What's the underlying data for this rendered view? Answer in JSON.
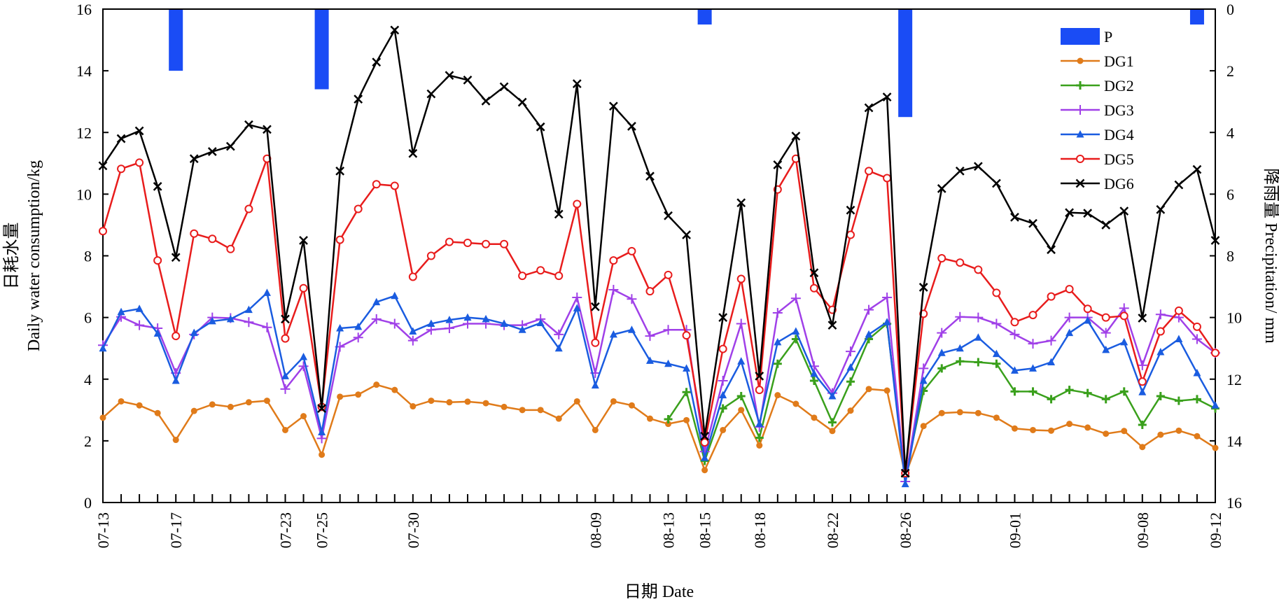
{
  "chart_data": {
    "type": "line",
    "title": "",
    "xlabel": "日期 Date",
    "ylabel_left": [
      "日耗水量",
      "Daily water consumption/kg"
    ],
    "ylabel_right": [
      "降雨量 Precipitation/ mm"
    ],
    "ylim_left": [
      0,
      16
    ],
    "ylim_right": [
      16,
      0
    ],
    "yticks_left": [
      "0",
      "2",
      "4",
      "6",
      "8",
      "10",
      "12",
      "14",
      "16"
    ],
    "yticks_right": [
      "16",
      "14",
      "12",
      "10",
      "8",
      "6",
      "4",
      "2",
      "0"
    ],
    "x_start": "07-13",
    "x_end": "09-12",
    "x_tick_labels": [
      {
        "label": "07-13",
        "day": 0
      },
      {
        "label": "07-17",
        "day": 4
      },
      {
        "label": "07-23",
        "day": 10
      },
      {
        "label": "07-25",
        "day": 12
      },
      {
        "label": "07-30",
        "day": 17
      },
      {
        "label": "08-09",
        "day": 27
      },
      {
        "label": "08-13",
        "day": 31
      },
      {
        "label": "08-15",
        "day": 33
      },
      {
        "label": "08-18",
        "day": 36
      },
      {
        "label": "08-22",
        "day": 40
      },
      {
        "label": "08-26",
        "day": 44
      },
      {
        "label": "09-01",
        "day": 50
      },
      {
        "label": "09-08",
        "day": 57
      },
      {
        "label": "09-12",
        "day": 61
      }
    ],
    "legend_position": "top-right",
    "precipitation": {
      "name": "P",
      "color": "#1a4cf5",
      "bars": [
        {
          "day": 4,
          "value": 2.0
        },
        {
          "day": 12,
          "value": 2.6
        },
        {
          "day": 33,
          "value": 0.5
        },
        {
          "day": 44,
          "value": 3.5
        },
        {
          "day": 60,
          "value": 0.5
        }
      ]
    },
    "series": [
      {
        "name": "DG1",
        "color": "#e07b1a",
        "marker": "dot",
        "values": [
          2.75,
          3.28,
          3.15,
          2.9,
          2.03,
          2.97,
          3.18,
          3.1,
          3.25,
          3.3,
          2.35,
          2.8,
          1.55,
          3.43,
          3.5,
          3.82,
          3.65,
          3.12,
          3.3,
          3.25,
          3.27,
          3.22,
          3.1,
          3.0,
          3.0,
          2.72,
          3.28,
          2.35,
          3.28,
          3.15,
          2.72,
          2.55,
          2.67,
          1.05,
          2.35,
          3.0,
          1.85,
          3.48,
          3.2,
          2.75,
          2.32,
          2.98,
          3.68,
          3.63,
          0.88,
          2.48,
          2.9,
          2.93,
          2.9,
          2.75,
          2.4,
          2.35,
          2.33,
          2.55,
          2.43,
          2.23,
          2.32,
          1.8,
          2.2,
          2.33,
          2.15,
          1.77
        ]
      },
      {
        "name": "DG2",
        "color": "#3aa01c",
        "marker": "plus",
        "start_day": 31,
        "values": [
          2.7,
          3.58,
          1.35,
          3.05,
          3.45,
          2.1,
          4.5,
          5.3,
          3.95,
          2.6,
          3.92,
          5.3,
          5.8,
          0.85,
          3.62,
          4.35,
          4.58,
          4.55,
          4.5,
          3.6,
          3.6,
          3.35,
          3.65,
          3.55,
          3.35,
          3.6,
          2.52,
          3.45,
          3.3,
          3.35,
          3.05
        ]
      },
      {
        "name": "DG3",
        "color": "#a040e8",
        "marker": "cross",
        "values": [
          5.1,
          6.02,
          5.75,
          5.65,
          4.2,
          5.45,
          6.0,
          5.98,
          5.85,
          5.68,
          3.68,
          4.42,
          2.08,
          5.05,
          5.35,
          5.95,
          5.8,
          5.25,
          5.6,
          5.65,
          5.8,
          5.8,
          5.75,
          5.75,
          5.95,
          5.45,
          6.65,
          4.2,
          6.9,
          6.6,
          5.4,
          5.6,
          5.6,
          1.65,
          3.95,
          5.8,
          2.45,
          6.15,
          6.62,
          4.42,
          3.55,
          4.9,
          6.25,
          6.65,
          0.68,
          4.35,
          5.5,
          6.02,
          6.0,
          5.8,
          5.45,
          5.15,
          5.25,
          6.0,
          6.0,
          5.5,
          6.3,
          4.45,
          6.1,
          6.0,
          5.3,
          4.85
        ]
      },
      {
        "name": "DG4",
        "color": "#1a5ce0",
        "marker": "triangle",
        "values": [
          5.0,
          6.18,
          6.28,
          5.48,
          3.95,
          5.5,
          5.88,
          5.95,
          6.25,
          6.8,
          4.1,
          4.72,
          2.28,
          5.65,
          5.7,
          6.5,
          6.7,
          5.55,
          5.8,
          5.92,
          6.0,
          5.95,
          5.8,
          5.6,
          5.82,
          5.0,
          6.3,
          3.8,
          5.45,
          5.6,
          4.6,
          4.5,
          4.35,
          1.45,
          3.48,
          4.58,
          2.55,
          5.2,
          5.55,
          4.18,
          3.45,
          4.38,
          5.45,
          5.85,
          0.6,
          3.95,
          4.85,
          5.0,
          5.35,
          4.82,
          4.28,
          4.35,
          4.55,
          5.5,
          5.9,
          4.95,
          5.2,
          3.58,
          4.88,
          5.3,
          4.2,
          3.15
        ]
      },
      {
        "name": "DG5",
        "color": "#e81c1c",
        "marker": "circle",
        "values": [
          8.8,
          10.82,
          11.02,
          7.85,
          5.4,
          8.72,
          8.55,
          8.22,
          9.52,
          11.15,
          5.32,
          6.95,
          3.1,
          8.52,
          9.52,
          10.32,
          10.27,
          7.32,
          8.0,
          8.45,
          8.42,
          8.38,
          8.38,
          7.35,
          7.53,
          7.35,
          9.68,
          5.18,
          7.85,
          8.15,
          6.85,
          7.38,
          5.42,
          1.95,
          4.98,
          7.25,
          3.65,
          10.15,
          11.15,
          6.95,
          6.25,
          8.68,
          10.75,
          10.52,
          0.95,
          6.12,
          7.92,
          7.78,
          7.55,
          6.8,
          5.85,
          6.08,
          6.68,
          6.92,
          6.28,
          6.0,
          6.05,
          3.92,
          5.55,
          6.22,
          5.7,
          4.85
        ]
      },
      {
        "name": "DG6",
        "color": "#000000",
        "marker": "x",
        "values": [
          10.92,
          11.8,
          12.05,
          10.25,
          7.95,
          11.15,
          11.38,
          11.55,
          12.25,
          12.1,
          5.95,
          8.5,
          3.05,
          10.75,
          13.08,
          14.28,
          15.32,
          11.32,
          13.25,
          13.85,
          13.7,
          13.02,
          13.48,
          12.98,
          12.18,
          9.35,
          13.58,
          6.35,
          12.85,
          12.2,
          10.58,
          9.3,
          8.68,
          2.15,
          6.0,
          9.72,
          4.1,
          10.95,
          11.88,
          7.45,
          5.75,
          9.48,
          12.8,
          13.15,
          0.95,
          6.98,
          10.18,
          10.75,
          10.9,
          10.35,
          9.25,
          9.05,
          8.2,
          9.4,
          9.38,
          9.0,
          9.45,
          5.98,
          9.5,
          10.3,
          10.8,
          8.5
        ]
      }
    ]
  }
}
